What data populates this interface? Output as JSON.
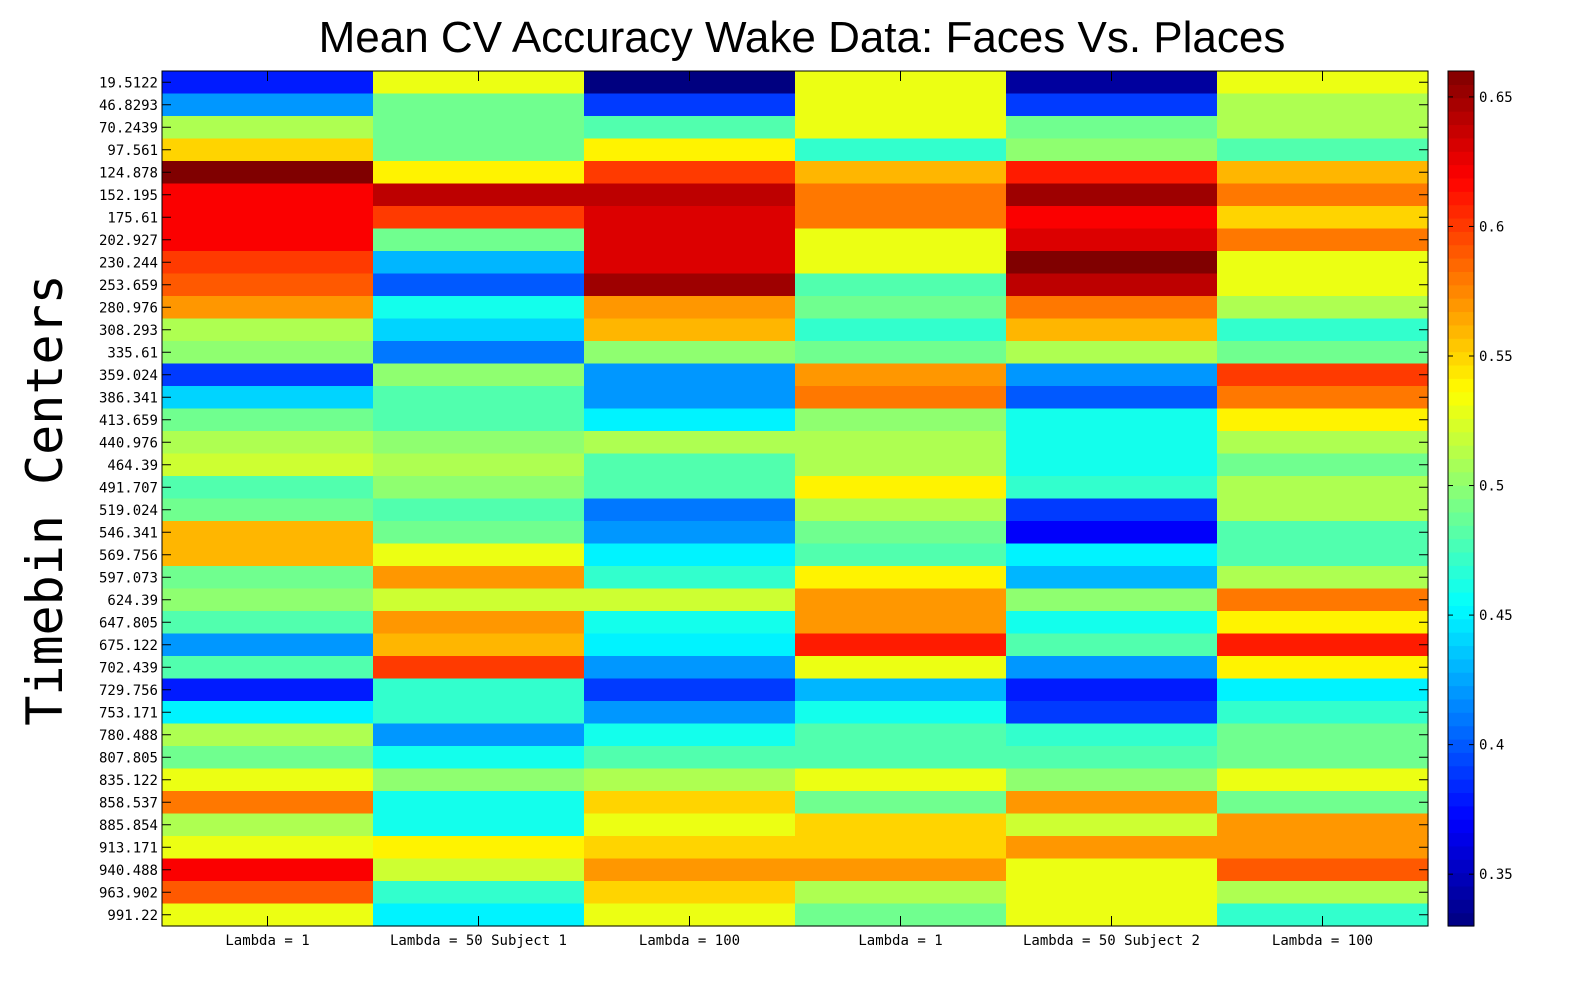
{
  "chart_data": {
    "type": "heatmap",
    "title": "Mean CV Accuracy Wake Data: Faces Vs. Places",
    "ylabel": "Timebin Centers",
    "x_tick_labels": [
      "Lambda = 1",
      "Lambda = 50 Subject 1",
      "Lambda = 100",
      "Lambda = 1",
      "Lambda = 50 Subject 2",
      "Lambda = 100"
    ],
    "y_tick_labels": [
      "19.5122",
      "46.8293",
      "70.2439",
      "97.561",
      "124.878",
      "152.195",
      "175.61",
      "202.927",
      "230.244",
      "253.659",
      "280.976",
      "308.293",
      "335.61",
      "359.024",
      "386.341",
      "413.659",
      "440.976",
      "464.39",
      "491.707",
      "519.024",
      "546.341",
      "569.756",
      "597.073",
      "624.39",
      "647.805",
      "675.122",
      "702.439",
      "729.756",
      "753.171",
      "780.488",
      "807.805",
      "835.122",
      "858.537",
      "885.854",
      "913.171",
      "940.488",
      "963.902",
      "991.22"
    ],
    "colorbar": {
      "colormap": "jet",
      "min": 0.33,
      "max": 0.66,
      "ticks": [
        0.35,
        0.4,
        0.45,
        0.5,
        0.55,
        0.6,
        0.65
      ],
      "tick_labels": [
        "0.35",
        "0.4",
        "0.45",
        "0.5",
        "0.55",
        "0.6",
        "0.65"
      ]
    },
    "values": [
      [
        0.38,
        0.53,
        0.33,
        0.53,
        0.34,
        0.53
      ],
      [
        0.42,
        0.49,
        0.39,
        0.53,
        0.39,
        0.51
      ],
      [
        0.51,
        0.49,
        0.48,
        0.53,
        0.49,
        0.51
      ],
      [
        0.55,
        0.49,
        0.54,
        0.47,
        0.5,
        0.48
      ],
      [
        0.66,
        0.54,
        0.6,
        0.56,
        0.61,
        0.56
      ],
      [
        0.62,
        0.64,
        0.64,
        0.58,
        0.65,
        0.58
      ],
      [
        0.62,
        0.6,
        0.63,
        0.58,
        0.62,
        0.55
      ],
      [
        0.62,
        0.49,
        0.63,
        0.53,
        0.63,
        0.58
      ],
      [
        0.6,
        0.43,
        0.63,
        0.53,
        0.66,
        0.53
      ],
      [
        0.59,
        0.4,
        0.65,
        0.48,
        0.64,
        0.53
      ],
      [
        0.57,
        0.46,
        0.57,
        0.49,
        0.58,
        0.51
      ],
      [
        0.51,
        0.44,
        0.56,
        0.47,
        0.56,
        0.47
      ],
      [
        0.5,
        0.41,
        0.5,
        0.49,
        0.51,
        0.49
      ],
      [
        0.39,
        0.5,
        0.42,
        0.57,
        0.42,
        0.6
      ],
      [
        0.44,
        0.48,
        0.42,
        0.58,
        0.4,
        0.58
      ],
      [
        0.49,
        0.48,
        0.45,
        0.5,
        0.46,
        0.54
      ],
      [
        0.51,
        0.5,
        0.51,
        0.51,
        0.46,
        0.51
      ],
      [
        0.52,
        0.51,
        0.48,
        0.51,
        0.46,
        0.49
      ],
      [
        0.48,
        0.5,
        0.48,
        0.54,
        0.47,
        0.51
      ],
      [
        0.49,
        0.48,
        0.41,
        0.51,
        0.39,
        0.51
      ],
      [
        0.56,
        0.49,
        0.42,
        0.49,
        0.37,
        0.48
      ],
      [
        0.56,
        0.53,
        0.45,
        0.48,
        0.45,
        0.48
      ],
      [
        0.49,
        0.57,
        0.47,
        0.54,
        0.43,
        0.51
      ],
      [
        0.5,
        0.52,
        0.52,
        0.57,
        0.5,
        0.58
      ],
      [
        0.48,
        0.57,
        0.46,
        0.57,
        0.46,
        0.54
      ],
      [
        0.42,
        0.56,
        0.45,
        0.61,
        0.48,
        0.61
      ],
      [
        0.48,
        0.6,
        0.42,
        0.53,
        0.42,
        0.54
      ],
      [
        0.38,
        0.47,
        0.39,
        0.43,
        0.38,
        0.45
      ],
      [
        0.45,
        0.47,
        0.42,
        0.46,
        0.39,
        0.47
      ],
      [
        0.51,
        0.42,
        0.46,
        0.48,
        0.47,
        0.49
      ],
      [
        0.49,
        0.46,
        0.48,
        0.48,
        0.48,
        0.49
      ],
      [
        0.53,
        0.5,
        0.51,
        0.53,
        0.5,
        0.53
      ],
      [
        0.58,
        0.46,
        0.55,
        0.49,
        0.57,
        0.49
      ],
      [
        0.51,
        0.46,
        0.53,
        0.55,
        0.52,
        0.57
      ],
      [
        0.53,
        0.54,
        0.55,
        0.55,
        0.57,
        0.57
      ],
      [
        0.62,
        0.52,
        0.57,
        0.57,
        0.53,
        0.59
      ],
      [
        0.59,
        0.47,
        0.55,
        0.51,
        0.53,
        0.51
      ],
      [
        0.53,
        0.45,
        0.53,
        0.49,
        0.53,
        0.47
      ]
    ]
  }
}
